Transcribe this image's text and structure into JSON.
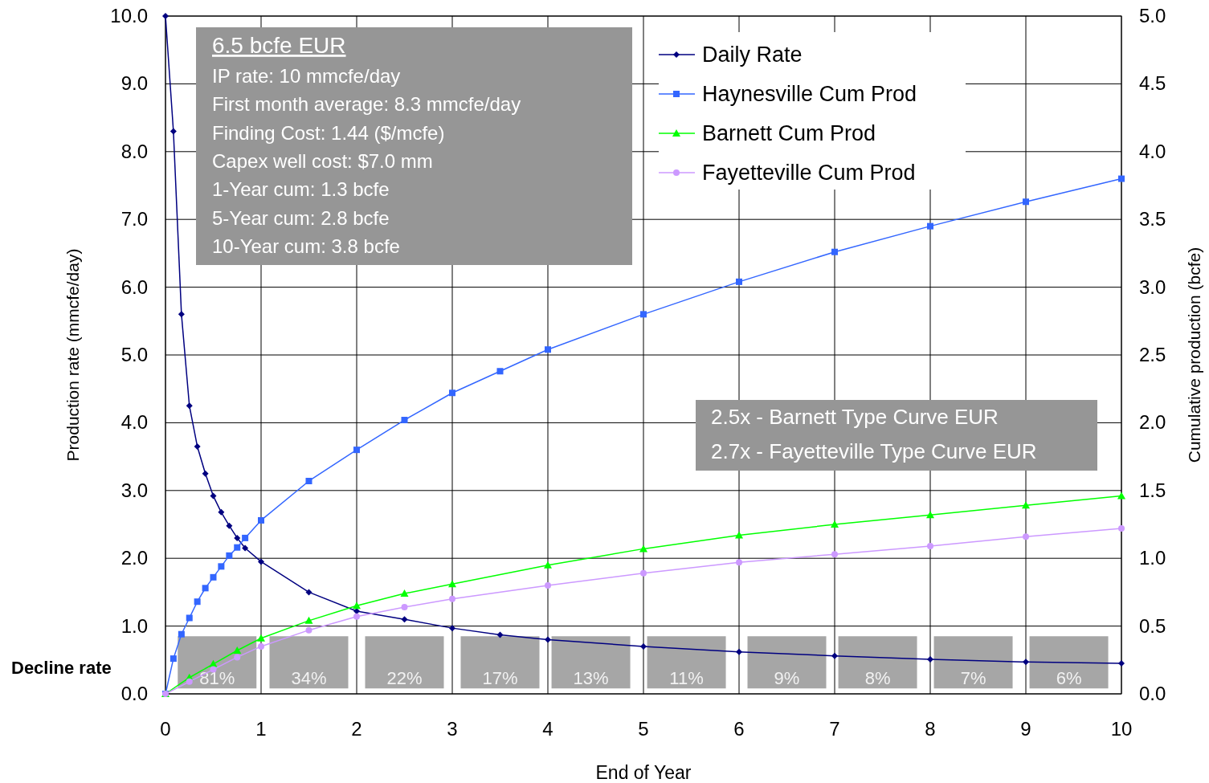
{
  "chart_data": {
    "type": "line",
    "xlabel": "End of Year",
    "ylabel": "Production rate (mmcfe/day)",
    "y2label": "Cumulative production (bcfe)",
    "xlim": [
      0,
      10
    ],
    "xticks": [
      0,
      1,
      2,
      3,
      4,
      5,
      6,
      7,
      8,
      9,
      10
    ],
    "ylim": [
      0,
      10
    ],
    "yticks": [
      {
        "value": 0,
        "label": "0.0"
      },
      {
        "value": 1,
        "label": "1.0"
      },
      {
        "value": 2,
        "label": "2.0"
      },
      {
        "value": 3,
        "label": "3.0"
      },
      {
        "value": 4,
        "label": "4.0"
      },
      {
        "value": 5,
        "label": "5.0"
      },
      {
        "value": 6,
        "label": "6.0"
      },
      {
        "value": 7,
        "label": "7.0"
      },
      {
        "value": 8,
        "label": "8.0"
      },
      {
        "value": 9,
        "label": "9.0"
      },
      {
        "value": 10,
        "label": "10.0"
      }
    ],
    "y2lim": [
      0,
      5
    ],
    "y2ticks": [
      {
        "value": 0,
        "label": "0.0"
      },
      0.5,
      {
        "value": 1,
        "label": "1.0"
      },
      1.5,
      {
        "value": 2,
        "label": "2.0"
      },
      2.5,
      {
        "value": 3,
        "label": "3.0"
      },
      3.5,
      {
        "value": 4,
        "label": "4.0"
      },
      4.5,
      {
        "value": 5,
        "label": "5.0"
      }
    ],
    "grid": true,
    "legend": "top right",
    "series": [
      {
        "name": "Daily Rate",
        "color": "#000080",
        "marker": "diamond",
        "x": [
          0,
          0.083,
          0.167,
          0.25,
          0.333,
          0.417,
          0.5,
          0.583,
          0.667,
          0.75,
          0.833,
          1,
          1.5,
          2,
          2.5,
          3,
          3.5,
          4,
          5,
          6,
          7,
          8,
          9,
          10
        ],
        "values": [
          10,
          8.3,
          5.6,
          4.25,
          3.65,
          3.25,
          2.92,
          2.68,
          2.48,
          2.3,
          2.15,
          1.95,
          1.5,
          1.22,
          1.1,
          0.97,
          0.87,
          0.8,
          0.7,
          0.62,
          0.56,
          0.51,
          0.47,
          0.45
        ]
      },
      {
        "name": "Haynesville Cum Prod",
        "color": "#3366ff",
        "marker": "square",
        "axis": "y2",
        "x": [
          0,
          0.083,
          0.167,
          0.25,
          0.333,
          0.417,
          0.5,
          0.583,
          0.667,
          0.75,
          0.833,
          1,
          1.5,
          2,
          2.5,
          3,
          3.5,
          4,
          5,
          6,
          7,
          8,
          9,
          10
        ],
        "values": [
          0,
          0.26,
          0.44,
          0.56,
          0.68,
          0.78,
          0.86,
          0.94,
          1.02,
          1.08,
          1.15,
          1.28,
          1.57,
          1.8,
          2.02,
          2.22,
          2.38,
          2.54,
          2.8,
          3.04,
          3.26,
          3.45,
          3.63,
          3.8
        ]
      },
      {
        "name": "Barnett Cum Prod",
        "color": "#00ff00",
        "marker": "triangle",
        "axis": "y2",
        "x": [
          0,
          0.25,
          0.5,
          0.75,
          1,
          1.5,
          2,
          2.5,
          3,
          4,
          5,
          6,
          7,
          8,
          9,
          10
        ],
        "values": [
          0,
          0.12,
          0.22,
          0.32,
          0.41,
          0.54,
          0.65,
          0.74,
          0.81,
          0.95,
          1.07,
          1.17,
          1.25,
          1.32,
          1.39,
          1.46
        ]
      },
      {
        "name": "Fayetteville Cum Prod",
        "color": "#cc99ff",
        "marker": "circle",
        "axis": "y2",
        "x": [
          0,
          0.25,
          0.5,
          0.75,
          1,
          1.5,
          2,
          2.5,
          3,
          4,
          5,
          6,
          7,
          8,
          9,
          10
        ],
        "values": [
          0,
          0.09,
          0.18,
          0.27,
          0.35,
          0.47,
          0.57,
          0.64,
          0.7,
          0.8,
          0.89,
          0.97,
          1.03,
          1.09,
          1.16,
          1.22
        ]
      }
    ],
    "annotations": [
      "6.5 bcfe EUR",
      "IP rate: 10 mmcfe/day",
      "First month average: 8.3 mmcfe/day",
      "Finding Cost: 1.44 ($/mcfe)",
      "Capex well cost: $7.0 mm",
      "1-Year cum: 1.3 bcfe",
      "5-Year cum: 2.8 bcfe",
      "10-Year cum: 3.8 bcfe",
      "2.5x - Barnett Type Curve EUR",
      "2.7x - Fayetteville Type Curve EUR",
      "Decline rate",
      "81%",
      "34%",
      "22%",
      "17%",
      "13%",
      "11%",
      "9%",
      "8%",
      "7%",
      "6%"
    ]
  }
}
